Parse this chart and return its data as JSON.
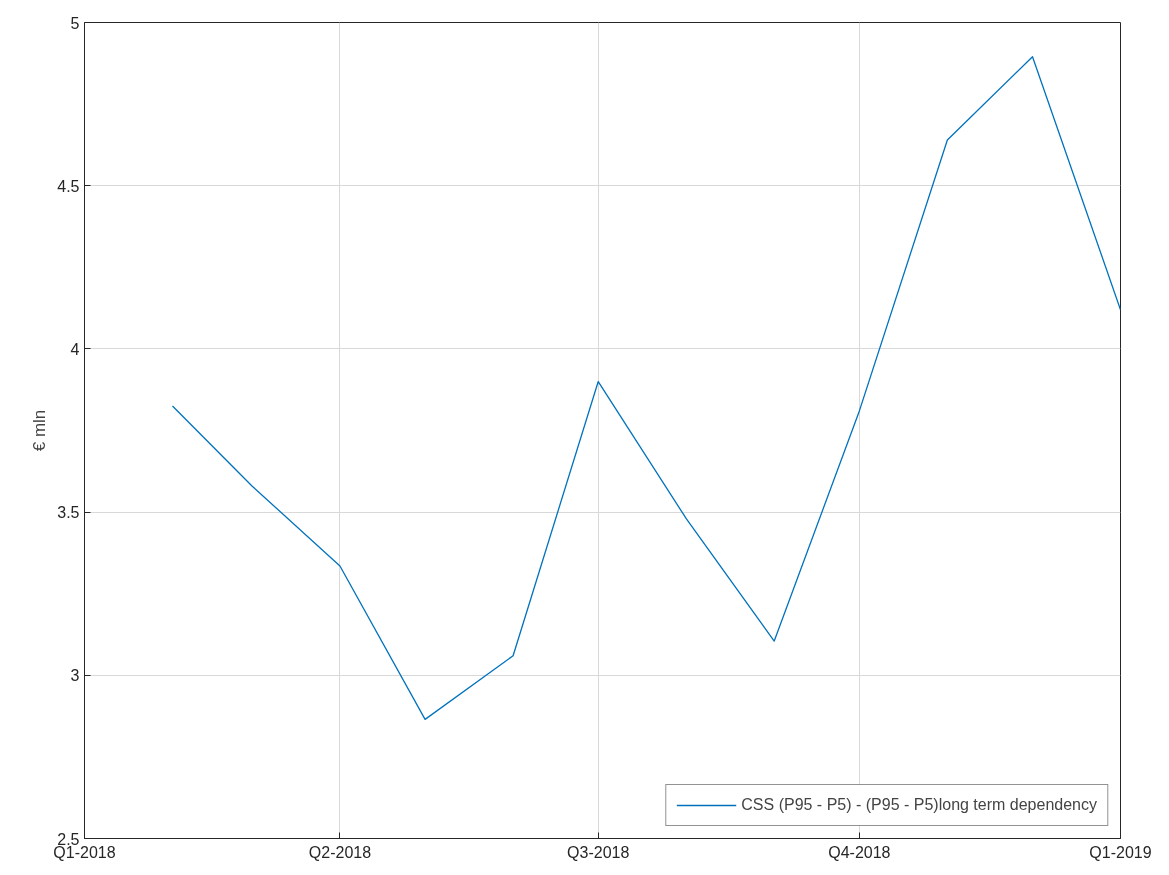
{
  "chart_data": {
    "type": "line",
    "ylabel": "€ mln",
    "x": [
      "2018-02",
      "2018-03",
      "2018-04",
      "2018-05",
      "2018-06",
      "2018-07",
      "2018-08",
      "2018-09",
      "2018-10",
      "2018-11",
      "2018-12",
      "2019-01"
    ],
    "series": [
      {
        "name": "CSS (P95 - P5) - (P95 - P5)long term dependency",
        "color": "#0072bd",
        "values": [
          3.825,
          3.58,
          3.335,
          2.865,
          3.06,
          3.9,
          3.48,
          3.105,
          3.81,
          4.64,
          4.895,
          4.12
        ]
      }
    ],
    "xlim": [
      "2018-01",
      "2019-01"
    ],
    "xticks": [
      {
        "value": "2018-01",
        "label": "Q1-2018"
      },
      {
        "value": "2018-04",
        "label": "Q2-2018"
      },
      {
        "value": "2018-07",
        "label": "Q3-2018"
      },
      {
        "value": "2018-10",
        "label": "Q4-2018"
      },
      {
        "value": "2019-01",
        "label": "Q1-2019"
      }
    ],
    "ylim": [
      2.5,
      5
    ],
    "yticks": [
      2.5,
      3,
      3.5,
      4,
      4.5,
      5
    ],
    "grid": true,
    "legend": "bottom right",
    "marker": "none",
    "line_style": "solid"
  }
}
